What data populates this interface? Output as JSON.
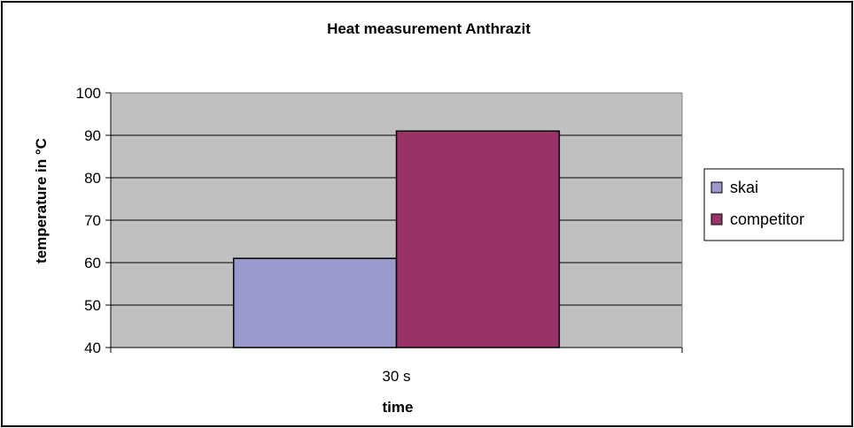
{
  "chart_data": {
    "type": "bar",
    "title": "Heat measurement Anthrazit",
    "xlabel": "time",
    "ylabel": "temperature in °C",
    "categories": [
      "30 s"
    ],
    "series": [
      {
        "name": "skai",
        "values": [
          61
        ]
      },
      {
        "name": "competitor",
        "values": [
          91
        ]
      }
    ],
    "ylim": [
      40,
      100
    ],
    "yticks": [
      "40",
      "50",
      "60",
      "70",
      "80",
      "90",
      "100"
    ],
    "grid": true,
    "legend_position": "right",
    "colors": {
      "plot_background": "#c0c0c0",
      "skai": "#9999cc",
      "competitor": "#993366",
      "gridline": "#000000"
    }
  }
}
